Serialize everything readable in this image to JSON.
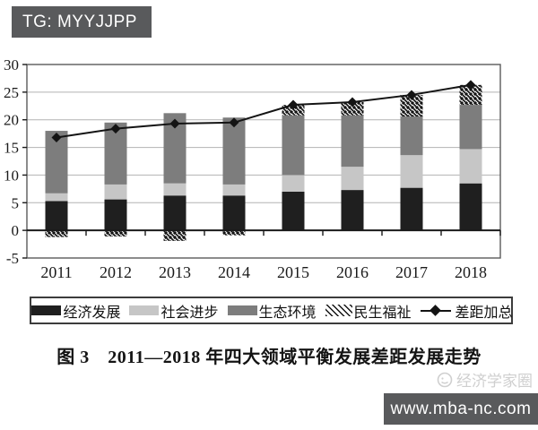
{
  "page": {
    "tg_badge": "TG: MYYJJPP",
    "watermark_text": "经济学家圈",
    "site_badge": "www.mba-nc.com"
  },
  "caption": "图 3　2011—2018 年四大领域平衡发展差距发展走势",
  "chart_data": {
    "type": "bar",
    "subtype": "stacked-bars-with-total-line",
    "title": "图 3 2011—2018 年四大领域平衡发展差距发展走势",
    "categories": [
      "2011",
      "2012",
      "2013",
      "2014",
      "2015",
      "2016",
      "2017",
      "2018"
    ],
    "series": [
      {
        "name": "经济发展",
        "type": "bar",
        "style": "solid",
        "color": "#1f1f1f",
        "values": [
          5.3,
          5.6,
          6.3,
          6.3,
          7.0,
          7.3,
          7.7,
          8.5
        ]
      },
      {
        "name": "社会进步",
        "type": "bar",
        "style": "solid",
        "color": "#c6c6c6",
        "values": [
          1.4,
          2.7,
          2.2,
          2.0,
          3.0,
          4.2,
          5.9,
          6.2
        ]
      },
      {
        "name": "生态环境",
        "type": "bar",
        "style": "solid",
        "color": "#7d7d7d",
        "values": [
          11.3,
          11.2,
          12.7,
          12.1,
          10.8,
          9.3,
          7.0,
          8.0
        ]
      },
      {
        "name": "民生福祉",
        "type": "bar",
        "style": "diagonal-hatch",
        "color": "#141414",
        "values": [
          -1.2,
          -1.1,
          -1.9,
          -0.9,
          1.9,
          2.4,
          3.9,
          3.6
        ]
      },
      {
        "name": "差距加总",
        "type": "line",
        "marker": "diamond",
        "color": "#141414",
        "values": [
          16.8,
          18.4,
          19.3,
          19.5,
          22.7,
          23.2,
          24.5,
          26.3
        ]
      }
    ],
    "ylim": [
      -5,
      30
    ],
    "ytick_step": 5,
    "yticks": [
      -5,
      0,
      5,
      10,
      15,
      20,
      25,
      30
    ],
    "grid": "horizontal",
    "legend_position": "bottom",
    "colors": {
      "grid": "#b2b2b2",
      "plot_border": "#5a5a5a",
      "zero_axis": "#1a1a1a",
      "text": "#1a1a1a"
    }
  }
}
